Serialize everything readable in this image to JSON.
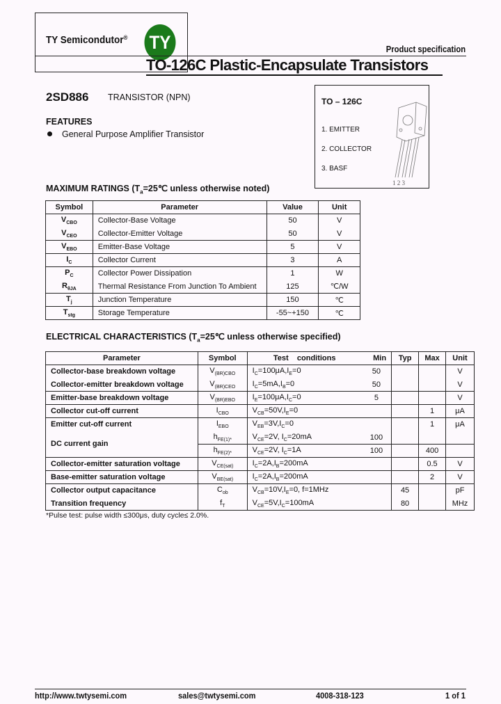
{
  "header": {
    "logo_text": "TY Semicondutor",
    "logo_reg": "®",
    "logo_badge": "TY",
    "product_spec": "Product specification",
    "title": "TO-126C Plastic-Encapsulate Transistors",
    "brand_color": "#1b7a1b"
  },
  "part": {
    "number": "2SD886",
    "type": "TRANSISTOR (NPN)"
  },
  "package": {
    "name": "TO – 126C",
    "pins": [
      "1. EMITTER",
      "2. COLLECTOR",
      "3. BASF"
    ],
    "pin_numbers": "1 2 3"
  },
  "features": {
    "heading": "FEATURES",
    "items": [
      "General Purpose Amplifier Transistor"
    ]
  },
  "max_ratings": {
    "heading_pre": "MAXIMUM RATINGS (T",
    "heading_sub": "a",
    "heading_post": "=25℃ unless otherwise noted)",
    "columns": [
      "Symbol",
      "Parameter",
      "Value",
      "Unit"
    ],
    "rows": [
      {
        "sym": "V",
        "sub": "CBO",
        "param": "Collector-Base Voltage",
        "value": "50",
        "unit": "V"
      },
      {
        "sym": "V",
        "sub": "CEO",
        "param": "Collector-Emitter Voltage",
        "value": "50",
        "unit": "V"
      },
      {
        "sym": "V",
        "sub": "EBO",
        "param": "Emitter-Base Voltage",
        "value": "5",
        "unit": "V"
      },
      {
        "sym": "I",
        "sub": "C",
        "param": "Collector Current",
        "value": "3",
        "unit": "A"
      },
      {
        "sym": "P",
        "sub": "C",
        "param": "Collector Power Dissipation",
        "value": "1",
        "unit": "W"
      },
      {
        "sym": "R",
        "sub": "θJA",
        "param": "Thermal Resistance From Junction To Ambient",
        "value": "125",
        "unit": "℃/W"
      },
      {
        "sym": "T",
        "sub": "j",
        "param": "Junction Temperature",
        "value": "150",
        "unit": "℃"
      },
      {
        "sym": "T",
        "sub": "stg",
        "param": "Storage Temperature",
        "value": "-55~+150",
        "unit": "℃"
      }
    ]
  },
  "electrical": {
    "heading_pre": "ELECTRICAL CHARACTERISTICS (T",
    "heading_sub": "a",
    "heading_post": "=25℃ unless otherwise specified)",
    "columns": [
      "Parameter",
      "Symbol",
      "Test    conditions",
      "Min",
      "Typ",
      "Max",
      "Unit"
    ],
    "rows": [
      {
        "param": "Collector-base breakdown voltage",
        "sym": "V",
        "sub": "(BR)CBO",
        "cond": "I<sub>C</sub>=100μA,I<sub>E</sub>=0",
        "min": "50",
        "typ": "",
        "max": "",
        "unit": "V"
      },
      {
        "param": "Collector-emitter breakdown voltage",
        "sym": "V",
        "sub": "(BR)CEO",
        "cond": "I<sub>C</sub>=5mA,I<sub>B</sub>=0",
        "min": "50",
        "typ": "",
        "max": "",
        "unit": "V"
      },
      {
        "param": "Emitter-base breakdown voltage",
        "sym": "V",
        "sub": "(BR)EBO",
        "cond": "I<sub>E</sub>=100μA,I<sub>C</sub>=0",
        "min": "5",
        "typ": "",
        "max": "",
        "unit": "V"
      },
      {
        "param": "Collector cut-off current",
        "sym": "I",
        "sub": "CBO",
        "cond": "V<sub>CB</sub>=50V,I<sub>E</sub>=0",
        "min": "",
        "typ": "",
        "max": "1",
        "unit": "μA"
      },
      {
        "param": "Emitter cut-off current",
        "sym": "I",
        "sub": "EBO",
        "cond": "V<sub>EB</sub>=3V,I<sub>C</sub>=0",
        "min": "",
        "typ": "",
        "max": "1",
        "unit": "μA"
      },
      {
        "param": "DC current gain",
        "sym": "h",
        "sub": "FE(1)*",
        "cond": "V<sub>CE</sub>=2V, I<sub>C</sub>=20mA",
        "min": "100",
        "typ": "",
        "max": "",
        "unit": ""
      },
      {
        "param": "",
        "sym": "h",
        "sub": "FE(2)*",
        "cond": "V<sub>CE</sub>=2V, I<sub>C</sub>=1A",
        "min": "100",
        "typ": "",
        "max": "400",
        "unit": ""
      },
      {
        "param": "Collector-emitter saturation voltage",
        "sym": "V",
        "sub": "CE(sat)",
        "cond": "I<sub>C</sub>=2A,I<sub>B</sub>=200mA",
        "min": "",
        "typ": "",
        "max": "0.5",
        "unit": "V"
      },
      {
        "param": "Base-emitter saturation voltage",
        "sym": "V",
        "sub": "BE(sat)",
        "cond": "I<sub>C</sub>=2A,I<sub>B</sub>=200mA",
        "min": "",
        "typ": "",
        "max": "2",
        "unit": "V"
      },
      {
        "param": "Collector output capacitance",
        "sym": "C",
        "sub": "ob",
        "cond": "V<sub>CB</sub>=10V,I<sub>E</sub>=0, f=1MHz",
        "min": "",
        "typ": "45",
        "max": "",
        "unit": "pF"
      },
      {
        "param": "Transition frequency",
        "sym": "f",
        "sub": "T",
        "cond": "V<sub>CE</sub>=5V,I<sub>C</sub>=100mA",
        "min": "",
        "typ": "80",
        "max": "",
        "unit": "MHz"
      }
    ],
    "note": "*Pulse test: pulse width ≤300μs, duty cycle≤ 2.0%."
  },
  "footer": {
    "url": "http://www.twtysemi.com",
    "email": "sales@twtysemi.com",
    "phone": "4008-318-123",
    "page": "1 of 1"
  }
}
